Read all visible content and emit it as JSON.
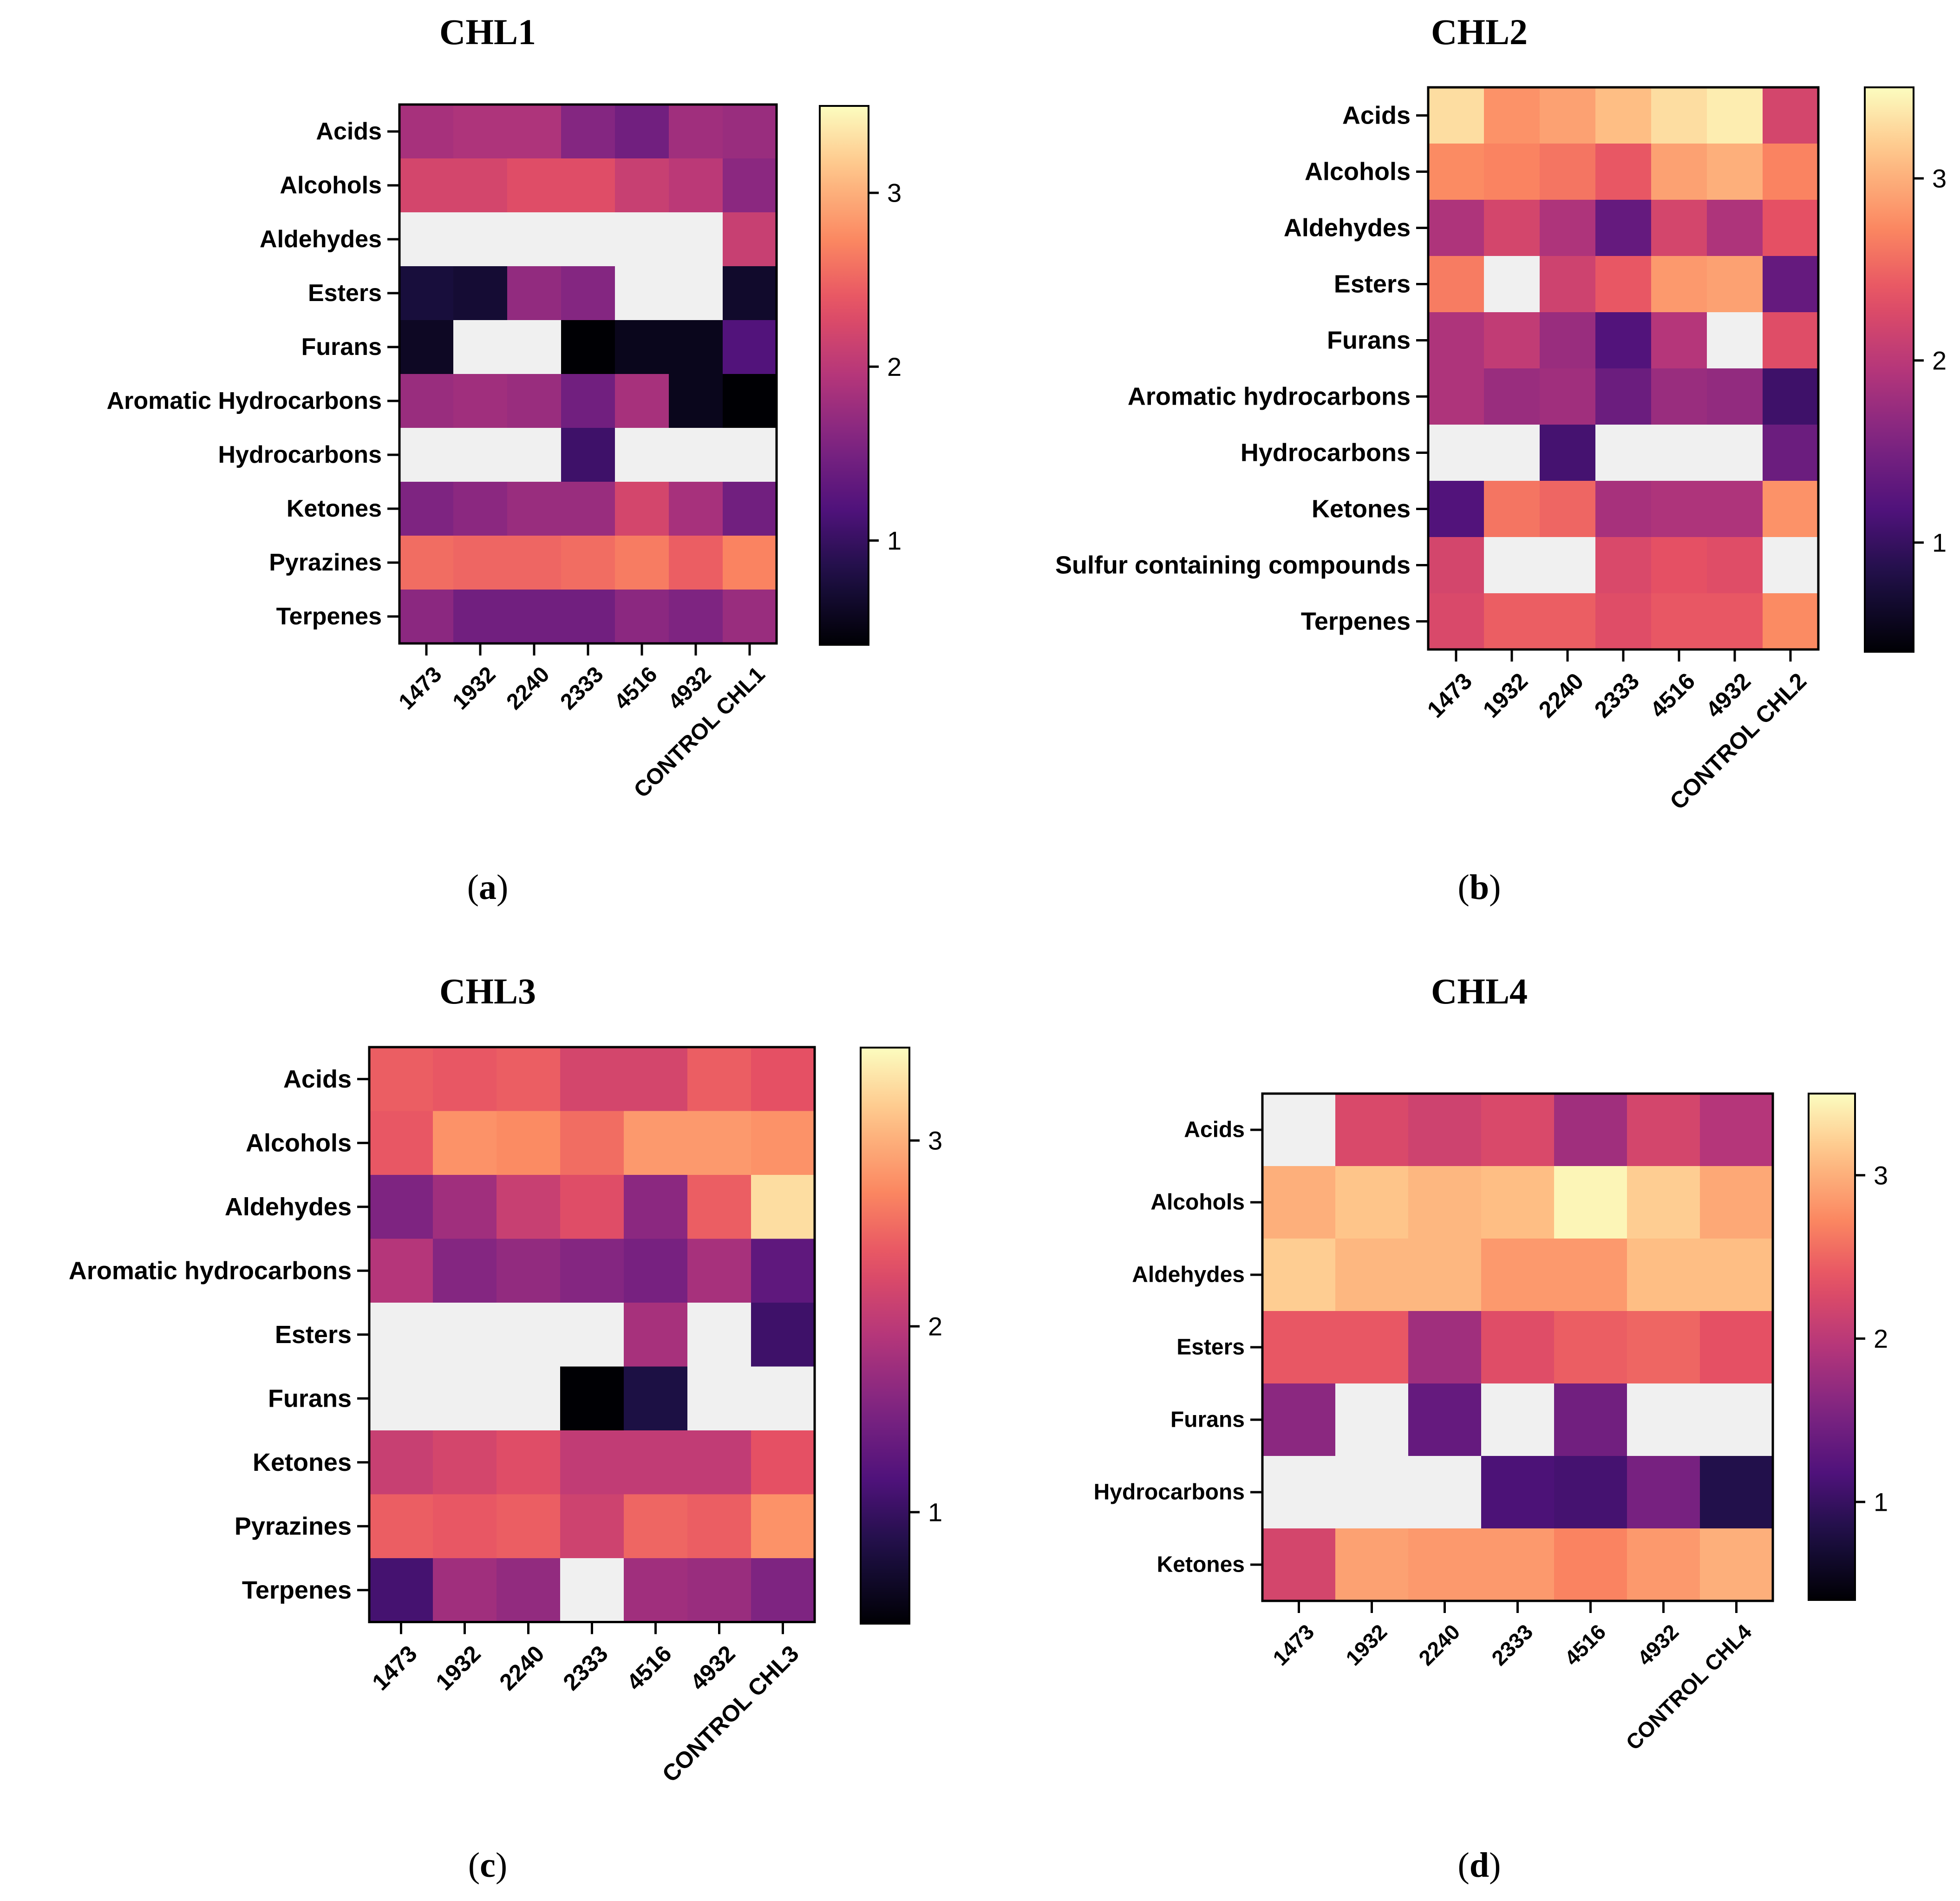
{
  "chart_data": [
    {
      "type": "heatmap",
      "panel_label": "a",
      "title": "CHL1",
      "rows": [
        "Acids",
        "Alcohols",
        "Aldehydes",
        "Esters",
        "Furans",
        "Aromatic Hydrocarbons",
        "Hydrocarbons",
        "Ketones",
        "Pyrazines",
        "Terpenes"
      ],
      "columns": [
        "1473",
        "1932",
        "2240",
        "2333",
        "4516",
        "4932",
        "CONTROL CHL1"
      ],
      "values": [
        [
          1.85,
          1.9,
          1.9,
          1.6,
          1.45,
          1.8,
          1.75
        ],
        [
          2.2,
          2.2,
          2.3,
          2.3,
          2.1,
          2.0,
          1.65
        ],
        [
          null,
          null,
          null,
          null,
          null,
          null,
          2.1
        ],
        [
          0.75,
          0.7,
          1.7,
          1.6,
          null,
          null,
          0.65
        ],
        [
          0.6,
          null,
          null,
          0.4,
          0.55,
          0.55,
          1.2
        ],
        [
          1.75,
          1.8,
          1.75,
          1.45,
          1.85,
          0.55,
          0.35
        ],
        [
          null,
          null,
          null,
          1.05,
          null,
          null,
          null
        ],
        [
          1.55,
          1.65,
          1.75,
          1.75,
          2.2,
          1.85,
          1.45
        ],
        [
          2.55,
          2.5,
          2.5,
          2.55,
          2.65,
          2.45,
          2.7
        ],
        [
          1.65,
          1.45,
          1.45,
          1.45,
          1.65,
          1.55,
          1.75
        ]
      ],
      "colorbar": {
        "range": [
          0.4,
          3.5
        ],
        "ticks": [
          1,
          2,
          3
        ]
      },
      "missing_color": "#f0f0f0"
    },
    {
      "type": "heatmap",
      "panel_label": "b",
      "title": "CHL2",
      "rows": [
        "Acids",
        "Alcohols",
        "Aldehydes",
        "Esters",
        "Furans",
        "Aromatic hydrocarbons",
        "Hydrocarbons",
        "Ketones",
        "Sulfur containing compounds",
        "Terpenes"
      ],
      "columns": [
        "1473",
        "1932",
        "2240",
        "2333",
        "4516",
        "4932",
        "CONTROL CHL2"
      ],
      "values": [
        [
          3.3,
          2.8,
          2.9,
          3.1,
          3.3,
          3.4,
          2.2
        ],
        [
          2.75,
          2.7,
          2.6,
          2.4,
          2.9,
          3.0,
          2.7
        ],
        [
          1.9,
          2.2,
          1.9,
          1.35,
          2.2,
          1.9,
          2.35
        ],
        [
          2.65,
          null,
          2.15,
          2.4,
          2.85,
          2.9,
          1.35
        ],
        [
          1.9,
          2.05,
          1.75,
          1.2,
          1.95,
          null,
          2.3
        ],
        [
          1.9,
          1.75,
          1.8,
          1.4,
          1.75,
          1.7,
          1.05
        ],
        [
          null,
          null,
          1.1,
          null,
          null,
          null,
          1.4
        ],
        [
          1.2,
          2.6,
          2.5,
          1.85,
          1.9,
          1.9,
          2.8
        ],
        [
          2.2,
          null,
          null,
          2.25,
          2.35,
          2.3,
          null
        ],
        [
          2.25,
          2.45,
          2.45,
          2.3,
          2.4,
          2.4,
          2.75
        ]
      ],
      "colorbar": {
        "range": [
          0.4,
          3.5
        ],
        "ticks": [
          1,
          2,
          3
        ]
      },
      "missing_color": "#f0f0f0"
    },
    {
      "type": "heatmap",
      "panel_label": "c",
      "title": "CHL3",
      "rows": [
        "Acids",
        "Alcohols",
        "Aldehydes",
        "Aromatic hydrocarbons",
        "Esters",
        "Furans",
        "Ketones",
        "Pyrazines",
        "Terpenes"
      ],
      "columns": [
        "1473",
        "1932",
        "2240",
        "2333",
        "4516",
        "4932",
        "CONTROL CHL3"
      ],
      "values": [
        [
          2.45,
          2.4,
          2.45,
          2.2,
          2.2,
          2.45,
          2.35
        ],
        [
          2.4,
          2.8,
          2.75,
          2.55,
          2.85,
          2.85,
          2.8
        ],
        [
          1.55,
          1.8,
          2.1,
          2.3,
          1.65,
          2.45,
          3.3
        ],
        [
          1.95,
          1.6,
          1.7,
          1.6,
          1.5,
          1.85,
          1.3
        ],
        [
          null,
          null,
          null,
          null,
          1.85,
          null,
          1.05
        ],
        [
          null,
          null,
          null,
          0.4,
          0.8,
          null,
          null
        ],
        [
          2.1,
          2.2,
          2.3,
          2.05,
          2.05,
          2.05,
          2.35
        ],
        [
          2.45,
          2.4,
          2.45,
          2.15,
          2.5,
          2.45,
          2.8
        ],
        [
          1.1,
          1.8,
          1.7,
          null,
          1.8,
          1.75,
          1.55
        ]
      ],
      "colorbar": {
        "range": [
          0.4,
          3.5
        ],
        "ticks": [
          1,
          2,
          3
        ]
      },
      "missing_color": "#f0f0f0"
    },
    {
      "type": "heatmap",
      "panel_label": "d",
      "title": "CHL4",
      "rows": [
        "Acids",
        "Alcohols",
        "Aldehydes",
        "Esters",
        "Furans",
        "Hydrocarbons",
        "Ketones"
      ],
      "columns": [
        "1473",
        "1932",
        "2240",
        "2333",
        "4516",
        "4932",
        "CONTROL CHL4"
      ],
      "values": [
        [
          null,
          2.25,
          2.15,
          2.25,
          1.8,
          2.2,
          1.95
        ],
        [
          3.0,
          3.15,
          3.05,
          3.1,
          3.45,
          3.2,
          2.95
        ],
        [
          3.2,
          3.05,
          3.05,
          2.85,
          2.85,
          3.1,
          3.1
        ],
        [
          2.4,
          2.4,
          1.8,
          2.3,
          2.45,
          2.5,
          2.35
        ],
        [
          1.65,
          null,
          1.35,
          null,
          1.45,
          null,
          null
        ],
        [
          null,
          null,
          null,
          1.15,
          1.1,
          1.5,
          0.85
        ],
        [
          2.2,
          2.9,
          2.85,
          2.85,
          2.7,
          2.85,
          3.0
        ]
      ],
      "colorbar": {
        "range": [
          0.4,
          3.5
        ],
        "ticks": [
          1,
          2,
          3
        ]
      },
      "missing_color": "#f0f0f0"
    }
  ]
}
